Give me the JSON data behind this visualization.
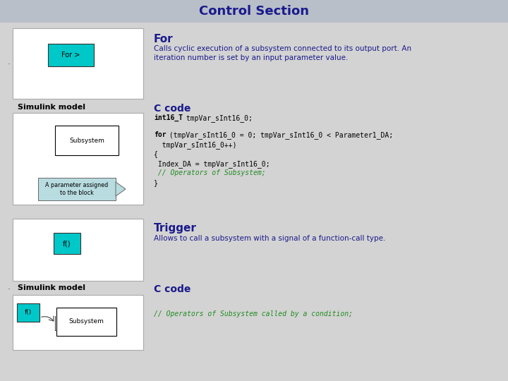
{
  "bg_color": "#d3d3d3",
  "title": "Control Section",
  "title_color": "#1a1a8c",
  "title_fontsize": 13,
  "title_bar_color": "#b8bfc8",
  "for_label": "For",
  "for_label_color": "#1a1a8c",
  "for_desc": "Calls cyclic execution of a subsystem connected to its output port. An\niteration number is set by an input parameter value.",
  "for_desc_color": "#1a1a8c",
  "simulink_label": "Simulink model",
  "c_code_label": "C code",
  "c_code_color": "#1a1a8c",
  "trigger_label": "Trigger",
  "trigger_label_color": "#1a1a8c",
  "trigger_desc": "Allows to call a subsystem with a signal of a function-call type.",
  "trigger_desc_color": "#1a1a8c",
  "trigger_code": "// Operators of Subsystem called by a condition;",
  "trigger_code_color": "#228B22",
  "for_code_green": "// Operators of Subsystem;",
  "for_code_green_color": "#228B22",
  "cyan_color": "#00c8c8",
  "white_color": "#ffffff",
  "border_color": "#888888",
  "ann_box_color": "#b8dce0",
  "text_color": "#000000",
  "code_color": "#000000"
}
